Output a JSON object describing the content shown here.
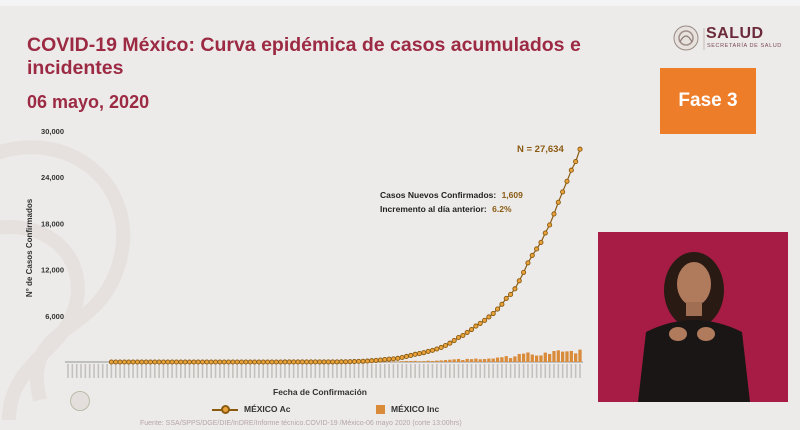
{
  "header": {
    "title": "COVID-19 México: Curva epidémica de casos acumulados e incidentes",
    "date": "06 mayo, 2020",
    "logo_text": "SALUD",
    "logo_sub": "SECRETARÍA DE SALUD",
    "fase_label": "Fase 3"
  },
  "footer": {
    "source": "Fuente: SSA/SPPS/DGE/DIE/InDRE/Informe técnico.COVID-19 /México-06 mayo 2020 (corte 13:00hrs)"
  },
  "colors": {
    "accent": "#9c2a43",
    "fase": "#ee7d2a",
    "line": "#8a5a10",
    "marker": "#e9a23c",
    "bar": "#d98b3a"
  },
  "chart_data": {
    "type": "line",
    "title": "",
    "xlabel": "Fecha de Confirmación",
    "ylabel": "N° de Casos Confirmados",
    "ylim": [
      0,
      30000
    ],
    "yticks": [
      "30,000",
      "24,000",
      "18,000",
      "12,000",
      "6,000"
    ],
    "grid": false,
    "legend_position": "bottom",
    "total_label": "N = 27,634",
    "annotations": [
      {
        "label": "Casos Nuevos Confirmados:",
        "value": "1,609"
      },
      {
        "label": "Incremento al día anterior:",
        "value": "6.2%"
      }
    ],
    "series": [
      {
        "name": "MÉXICO Ac",
        "kind": "line",
        "values": [
          0,
          0,
          0,
          0,
          0,
          0,
          0,
          0,
          0,
          0,
          0,
          0,
          0,
          0,
          0,
          0,
          0,
          0,
          0,
          0,
          0,
          0,
          0,
          0,
          0,
          0,
          0,
          0,
          0,
          0,
          0,
          0,
          0,
          0,
          0,
          0,
          0,
          0,
          0,
          0,
          0,
          0,
          0,
          0,
          0,
          0,
          0,
          0,
          0,
          1,
          3,
          5,
          5,
          6,
          7,
          7,
          7,
          8,
          9,
          10,
          11,
          12,
          15,
          20,
          26,
          41,
          53,
          82,
          93,
          118,
          164,
          203,
          251,
          316,
          367,
          405,
          475,
          585,
          717,
          848,
          993,
          1094,
          1215,
          1378,
          1510,
          1688,
          1890,
          2143,
          2439,
          2785,
          3181,
          3441,
          3844,
          4219,
          4661,
          5014,
          5399,
          5847,
          6297,
          6875,
          7497,
          8261,
          8772,
          9501,
          10544,
          11633,
          12872,
          13842,
          14677,
          15529,
          16752,
          17799,
          19224,
          20739,
          22088,
          23471,
          24905,
          26025,
          27634
        ]
      },
      {
        "name": "MÉXICO Inc",
        "kind": "bar",
        "values": [
          0,
          0,
          0,
          0,
          0,
          0,
          0,
          0,
          0,
          0,
          0,
          0,
          0,
          0,
          0,
          0,
          0,
          0,
          0,
          0,
          0,
          0,
          0,
          0,
          0,
          0,
          0,
          0,
          0,
          0,
          0,
          0,
          0,
          0,
          0,
          0,
          0,
          0,
          0,
          0,
          0,
          0,
          0,
          0,
          0,
          0,
          0,
          0,
          0,
          1,
          2,
          2,
          0,
          1,
          1,
          0,
          0,
          1,
          1,
          1,
          1,
          1,
          3,
          5,
          6,
          15,
          12,
          29,
          11,
          25,
          46,
          39,
          48,
          65,
          51,
          38,
          70,
          110,
          132,
          131,
          145,
          101,
          121,
          163,
          132,
          178,
          202,
          253,
          296,
          346,
          396,
          260,
          403,
          375,
          442,
          353,
          385,
          448,
          450,
          578,
          622,
          764,
          511,
          729,
          1043,
          1089,
          1239,
          970,
          835,
          852,
          1223,
          1047,
          1425,
          1515,
          1349,
          1383,
          1434,
          1120,
          1609
        ]
      }
    ]
  }
}
